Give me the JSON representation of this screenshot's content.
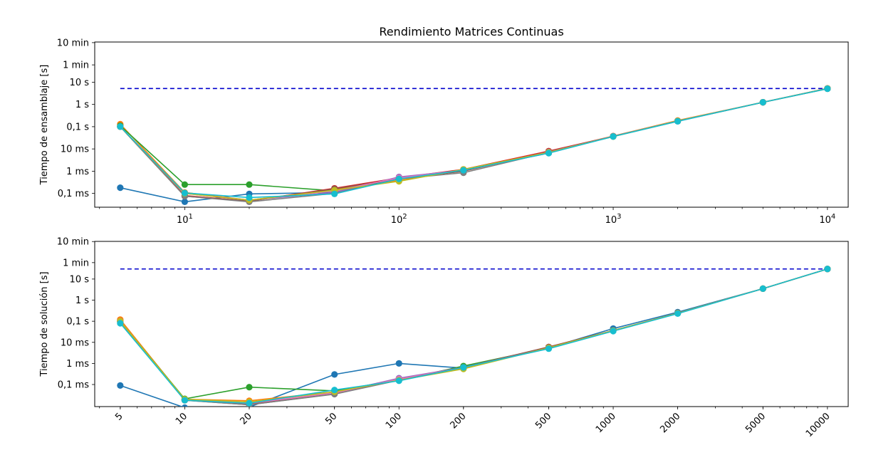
{
  "title": "Rendimiento Matrices Continuas",
  "x_values": [
    5,
    10,
    20,
    50,
    100,
    200,
    500,
    1000,
    2000,
    5000,
    10000
  ],
  "chart_data": [
    {
      "type": "line",
      "title": "Rendimiento Matrices Continuas",
      "xlabel": "",
      "ylabel": "Tiempo de ensamblaje [s]",
      "xscale": "log",
      "yscale": "log",
      "xlim": [
        3.8,
        12500
      ],
      "ylim": [
        2.4e-05,
        640
      ],
      "grid": false,
      "x_tick_labels": [
        "10^1",
        "10^2",
        "10^3",
        "10^4"
      ],
      "y_ticks": [
        {
          "value": 0.0001,
          "label": "0,1 ms"
        },
        {
          "value": 0.001,
          "label": "1 ms"
        },
        {
          "value": 0.01,
          "label": "10 ms"
        },
        {
          "value": 0.1,
          "label": "0,1 s"
        },
        {
          "value": 1,
          "label": "1 s"
        },
        {
          "value": 10,
          "label": "10 s"
        },
        {
          "value": 60,
          "label": "1 min"
        },
        {
          "value": 600,
          "label": "10 min"
        }
      ],
      "reference_line": {
        "y": 5.2,
        "x_range": [
          5,
          10000
        ],
        "color": "#0000cc",
        "style": "dashed"
      },
      "series": [
        {
          "color": "#1f77b4",
          "x": [
            5,
            10,
            20,
            50,
            100,
            200,
            500,
            1000,
            2000,
            5000,
            10000
          ],
          "y": [
            0.00018,
            4.2e-05,
            9.5e-05,
            0.00011,
            0.00045,
            0.0011,
            0.0065,
            0.037,
            0.175,
            1.25,
            5.1
          ]
        },
        {
          "color": "#ff7f0e",
          "x": [
            5,
            10,
            20,
            50,
            100,
            200,
            500,
            1000,
            2000,
            5000,
            10000
          ],
          "y": [
            0.13,
            0.00011,
            5e-05,
            0.00015,
            0.00038,
            0.0012,
            0.0075,
            0.038,
            0.19,
            1.25,
            5.3
          ]
        },
        {
          "color": "#2ca02c",
          "x": [
            5,
            10,
            20,
            50,
            100,
            200,
            500,
            1000,
            2000,
            5000,
            10000
          ],
          "y": [
            0.11,
            0.00025,
            0.00025,
            0.00013,
            0.00045,
            0.0011,
            0.007,
            0.036,
            0.18,
            1.25,
            5.1
          ]
        },
        {
          "color": "#d62728",
          "x": [
            5,
            10,
            20,
            50,
            100,
            200,
            500,
            1000,
            2000,
            5000,
            10000
          ],
          "y": [
            0.1,
            8e-05,
            4.5e-05,
            0.00017,
            0.0005,
            0.0012,
            0.008,
            0.037,
            0.18,
            1.25,
            5.2
          ]
        },
        {
          "color": "#9467bd",
          "x": [
            5,
            10,
            20,
            50,
            100,
            200,
            500,
            1000,
            2000,
            5000,
            10000
          ],
          "y": [
            0.1,
            0.0001,
            5e-05,
            0.00011,
            0.00055,
            0.0011,
            0.007,
            0.037,
            0.18,
            1.25,
            5.2
          ]
        },
        {
          "color": "#8c564b",
          "x": [
            5,
            10,
            20,
            50,
            100,
            200,
            500,
            1000,
            2000,
            5000,
            10000
          ],
          "y": [
            0.1,
            7.5e-05,
            4.5e-05,
            0.00016,
            0.00045,
            0.001,
            0.0075,
            0.037,
            0.18,
            1.25,
            5.2
          ]
        },
        {
          "color": "#e377c2",
          "x": [
            5,
            10,
            20,
            50,
            100,
            200,
            500,
            1000,
            2000,
            5000,
            10000
          ],
          "y": [
            0.1,
            0.0001,
            5e-05,
            0.00013,
            0.0005,
            0.0011,
            0.0072,
            0.037,
            0.18,
            1.25,
            5.2
          ]
        },
        {
          "color": "#7f7f7f",
          "x": [
            5,
            10,
            20,
            50,
            100,
            200,
            500,
            1000,
            2000,
            5000,
            10000
          ],
          "y": [
            0.1,
            7.5e-05,
            4.2e-05,
            0.0001,
            0.00045,
            0.00085,
            0.007,
            0.037,
            0.18,
            1.25,
            5.2
          ]
        },
        {
          "color": "#bcbd22",
          "x": [
            5,
            10,
            20,
            50,
            100,
            200,
            500,
            1000,
            2000,
            5000,
            10000
          ],
          "y": [
            0.1,
            0.0001,
            5e-05,
            0.00014,
            0.00035,
            0.0012,
            0.007,
            0.036,
            0.18,
            1.25,
            5.2
          ]
        },
        {
          "color": "#17becf",
          "x": [
            5,
            10,
            20,
            50,
            100,
            200,
            500,
            1000,
            2000,
            5000,
            10000
          ],
          "y": [
            0.1,
            0.000105,
            6.5e-05,
            9.5e-05,
            0.00045,
            0.0011,
            0.0065,
            0.036,
            0.175,
            1.25,
            5.1
          ]
        }
      ]
    },
    {
      "type": "line",
      "title": "",
      "xlabel": "",
      "ylabel": "Tiempo de solución [s]",
      "xscale": "log",
      "yscale": "log",
      "xlim": [
        3.8,
        12500
      ],
      "ylim": [
        9e-06,
        610
      ],
      "grid": false,
      "x_tick_labels": [
        "5",
        "10",
        "20",
        "50",
        "100",
        "200",
        "500",
        "1000",
        "2000",
        "5000",
        "10000"
      ],
      "y_ticks": [
        {
          "value": 0.0001,
          "label": "0,1 ms"
        },
        {
          "value": 0.001,
          "label": "1 ms"
        },
        {
          "value": 0.01,
          "label": "10 ms"
        },
        {
          "value": 0.1,
          "label": "0,1 s"
        },
        {
          "value": 1,
          "label": "1 s"
        },
        {
          "value": 10,
          "label": "10 s"
        },
        {
          "value": 60,
          "label": "1 min"
        },
        {
          "value": 600,
          "label": "10 min"
        }
      ],
      "reference_line": {
        "y": 30,
        "x_range": [
          5,
          10000
        ],
        "color": "#0000cc",
        "style": "dashed"
      },
      "series": [
        {
          "color": "#1f77b4",
          "x": [
            5,
            10,
            20,
            50,
            100,
            200,
            500,
            1000,
            2000,
            5000,
            10000
          ],
          "y": [
            9e-05,
            8e-06,
            8.5e-06,
            0.0003,
            0.001,
            0.0006,
            0.0055,
            0.045,
            0.27,
            3.5,
            30
          ]
        },
        {
          "color": "#ff7f0e",
          "x": [
            5,
            10,
            20,
            50,
            100,
            200,
            500,
            1000,
            2000,
            5000,
            10000
          ],
          "y": [
            0.12,
            2e-05,
            1.7e-05,
            4.5e-05,
            0.00018,
            0.0006,
            0.006,
            0.036,
            0.24,
            3.5,
            30
          ]
        },
        {
          "color": "#2ca02c",
          "x": [
            5,
            10,
            20,
            50,
            100,
            200,
            500,
            1000,
            2000,
            5000,
            10000
          ],
          "y": [
            0.1,
            2.1e-05,
            7.5e-05,
            5e-05,
            0.00016,
            0.00075,
            0.0055,
            0.036,
            0.24,
            3.5,
            30
          ]
        },
        {
          "color": "#d62728",
          "x": [
            5,
            10,
            20,
            50,
            100,
            200,
            500,
            1000,
            2000,
            5000,
            10000
          ],
          "y": [
            0.1,
            1.9e-05,
            1.2e-05,
            3.8e-05,
            0.00018,
            0.00065,
            0.006,
            0.036,
            0.24,
            3.5,
            30
          ]
        },
        {
          "color": "#9467bd",
          "x": [
            5,
            10,
            20,
            50,
            100,
            200,
            500,
            1000,
            2000,
            5000,
            10000
          ],
          "y": [
            0.1,
            1.9e-05,
            1.3e-05,
            4e-05,
            0.0002,
            0.00065,
            0.0055,
            0.036,
            0.24,
            3.5,
            30
          ]
        },
        {
          "color": "#8c564b",
          "x": [
            5,
            10,
            20,
            50,
            100,
            200,
            500,
            1000,
            2000,
            5000,
            10000
          ],
          "y": [
            0.1,
            1.8e-05,
            1.1e-05,
            3.6e-05,
            0.00017,
            0.00065,
            0.006,
            0.036,
            0.24,
            3.5,
            30
          ]
        },
        {
          "color": "#e377c2",
          "x": [
            5,
            10,
            20,
            50,
            100,
            200,
            500,
            1000,
            2000,
            5000,
            10000
          ],
          "y": [
            0.1,
            1.9e-05,
            1.3e-05,
            4e-05,
            0.00018,
            0.00065,
            0.0055,
            0.036,
            0.24,
            3.5,
            30
          ]
        },
        {
          "color": "#7f7f7f",
          "x": [
            5,
            10,
            20,
            50,
            100,
            200,
            500,
            1000,
            2000,
            5000,
            10000
          ],
          "y": [
            0.09,
            1.8e-05,
            1.1e-05,
            3.5e-05,
            0.00016,
            0.00065,
            0.0055,
            0.036,
            0.24,
            3.5,
            30
          ]
        },
        {
          "color": "#bcbd22",
          "x": [
            5,
            10,
            20,
            50,
            100,
            200,
            500,
            1000,
            2000,
            5000,
            10000
          ],
          "y": [
            0.1,
            2e-05,
            1.5e-05,
            4.5e-05,
            0.00016,
            0.00055,
            0.0055,
            0.036,
            0.24,
            3.5,
            30
          ]
        },
        {
          "color": "#17becf",
          "x": [
            5,
            10,
            20,
            50,
            100,
            200,
            500,
            1000,
            2000,
            5000,
            10000
          ],
          "y": [
            0.08,
            1.8e-05,
            1.3e-05,
            5.5e-05,
            0.00015,
            0.00065,
            0.005,
            0.034,
            0.23,
            3.5,
            30
          ]
        }
      ]
    }
  ]
}
